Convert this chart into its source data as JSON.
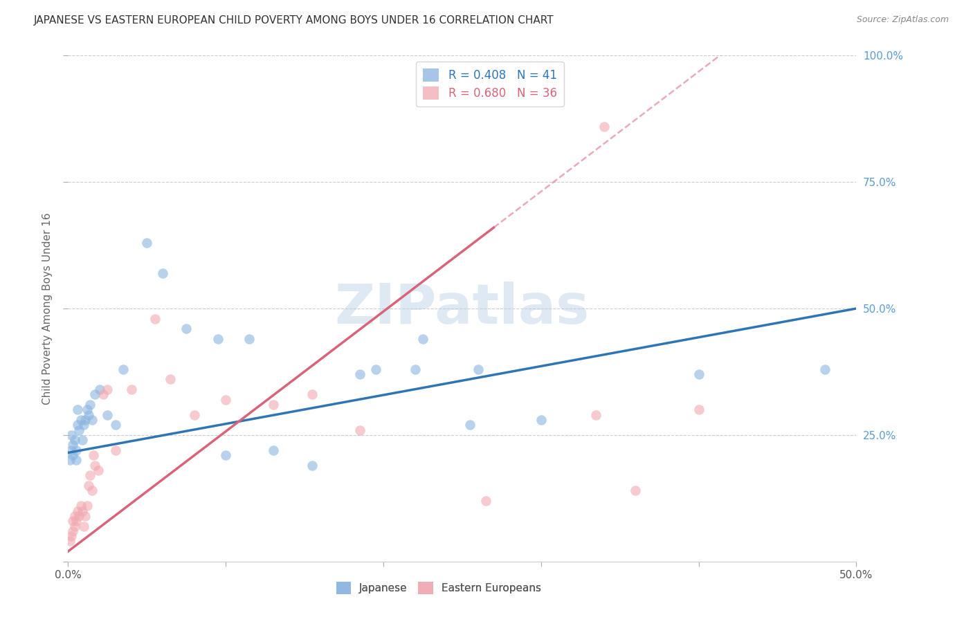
{
  "title": "JAPANESE VS EASTERN EUROPEAN CHILD POVERTY AMONG BOYS UNDER 16 CORRELATION CHART",
  "source": "Source: ZipAtlas.com",
  "ylabel": "Child Poverty Among Boys Under 16",
  "xlim": [
    0.0,
    0.5
  ],
  "ylim": [
    0.0,
    1.0
  ],
  "watermark_text": "ZIPatlas",
  "japanese_R": 0.408,
  "japanese_N": 41,
  "eastern_R": 0.68,
  "eastern_N": 36,
  "japanese_color": "#8ab4e0",
  "eastern_color": "#f0a8b0",
  "japanese_line_color": "#2e75b6",
  "eastern_line_color": "#d9647a",
  "background_color": "#ffffff",
  "grid_color": "#cccccc",
  "title_color": "#333333",
  "right_tick_color": "#5b9bd5",
  "eastern_dash_transition": 0.27,
  "japanese_line_y0": 0.215,
  "japanese_line_y1": 0.5,
  "eastern_line_y0": 0.02,
  "eastern_line_y1": 0.66,
  "japanese_x": [
    0.001,
    0.002,
    0.002,
    0.003,
    0.003,
    0.004,
    0.005,
    0.005,
    0.006,
    0.006,
    0.007,
    0.008,
    0.009,
    0.01,
    0.011,
    0.012,
    0.013,
    0.014,
    0.015,
    0.017,
    0.02,
    0.025,
    0.03,
    0.035,
    0.05,
    0.06,
    0.075,
    0.095,
    0.1,
    0.115,
    0.13,
    0.155,
    0.185,
    0.225,
    0.255,
    0.3,
    0.4,
    0.48,
    0.195,
    0.22,
    0.26
  ],
  "japanese_y": [
    0.2,
    0.22,
    0.25,
    0.21,
    0.23,
    0.24,
    0.2,
    0.22,
    0.27,
    0.3,
    0.26,
    0.28,
    0.24,
    0.27,
    0.28,
    0.3,
    0.29,
    0.31,
    0.28,
    0.33,
    0.34,
    0.29,
    0.27,
    0.38,
    0.63,
    0.57,
    0.46,
    0.44,
    0.21,
    0.44,
    0.22,
    0.19,
    0.37,
    0.44,
    0.27,
    0.28,
    0.37,
    0.38,
    0.38,
    0.38,
    0.38
  ],
  "eastern_x": [
    0.001,
    0.002,
    0.003,
    0.003,
    0.004,
    0.004,
    0.005,
    0.006,
    0.007,
    0.008,
    0.009,
    0.01,
    0.011,
    0.012,
    0.013,
    0.014,
    0.015,
    0.016,
    0.017,
    0.019,
    0.022,
    0.025,
    0.03,
    0.04,
    0.055,
    0.065,
    0.08,
    0.1,
    0.13,
    0.155,
    0.185,
    0.265,
    0.335,
    0.36,
    0.4,
    0.34
  ],
  "eastern_y": [
    0.04,
    0.05,
    0.06,
    0.08,
    0.07,
    0.09,
    0.08,
    0.1,
    0.09,
    0.11,
    0.1,
    0.07,
    0.09,
    0.11,
    0.15,
    0.17,
    0.14,
    0.21,
    0.19,
    0.18,
    0.33,
    0.34,
    0.22,
    0.34,
    0.48,
    0.36,
    0.29,
    0.32,
    0.31,
    0.33,
    0.26,
    0.12,
    0.29,
    0.14,
    0.3,
    0.86
  ]
}
